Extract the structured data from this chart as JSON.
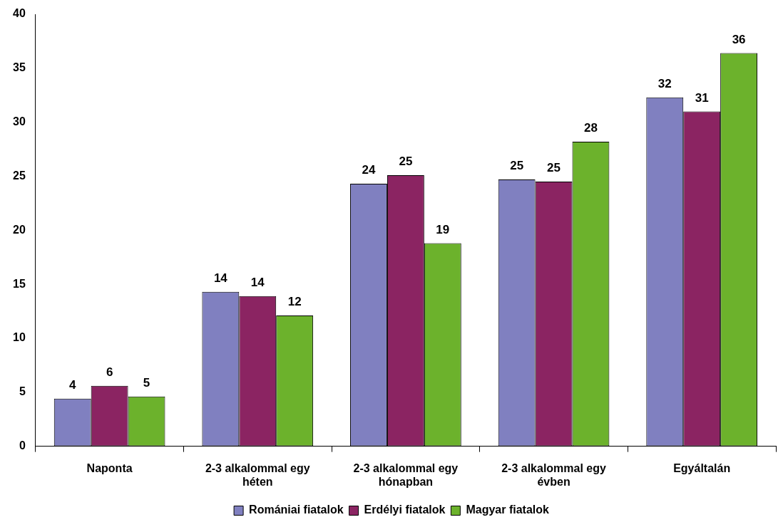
{
  "chart_data": {
    "type": "bar",
    "categories": [
      "Naponta",
      "2-3 alkalommal egy héten",
      "2-3 alkalommal egy hónapban",
      "2-3 alkalommal egy évben",
      "Egyáltalán"
    ],
    "series": [
      {
        "name": "Romániai fiatalok",
        "color": "#8080c0",
        "values": [
          4.4,
          14.3,
          24.3,
          24.7,
          32.3
        ],
        "value_labels": [
          "4",
          "14",
          "24",
          "25",
          "32"
        ]
      },
      {
        "name": "Erdélyi fiatalok",
        "color": "#8b2462",
        "values": [
          5.6,
          13.9,
          25.1,
          24.5,
          31.0
        ],
        "value_labels": [
          "6",
          "14",
          "25",
          "25",
          "31"
        ]
      },
      {
        "name": "Magyar fiatalok",
        "color": "#6cb22c",
        "values": [
          4.6,
          12.1,
          18.8,
          28.2,
          36.4
        ],
        "value_labels": [
          "5",
          "12",
          "19",
          "28",
          "36"
        ]
      }
    ],
    "ylim": [
      0,
      40
    ],
    "yticks": [
      0,
      5,
      10,
      15,
      20,
      25,
      30,
      35,
      40
    ],
    "grid": false,
    "legend": "bottom"
  }
}
